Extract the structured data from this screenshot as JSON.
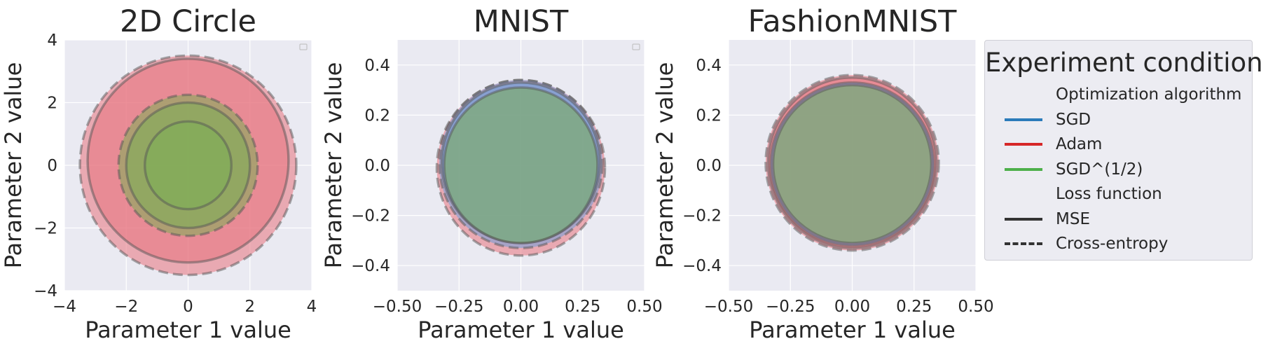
{
  "chart_data": [
    {
      "type": "area",
      "title": "2D Circle",
      "xlabel": "Parameter 1 value",
      "ylabel": "Parameter 2 value",
      "xlim": [
        -4,
        4
      ],
      "ylim": [
        -4,
        4
      ],
      "xticks": [
        "−4",
        "−2",
        "0",
        "2",
        "4"
      ],
      "yticks": [
        "4",
        "2",
        "0",
        "−2",
        "−4"
      ],
      "grid": true,
      "empty_legend_box": "top-right",
      "circles": [
        {
          "optimizer": "Adam",
          "loss": "Cross-entropy",
          "x_range": [
            -3.5,
            3.5
          ],
          "y_range": [
            -3.5,
            3.5
          ]
        },
        {
          "optimizer": "Adam",
          "loss": "MSE",
          "x_range": [
            -3.25,
            3.25
          ],
          "y_range": [
            -3.1,
            3.4
          ]
        },
        {
          "optimizer": "SGD^(1/2)",
          "loss": "Cross-entropy",
          "x_range": [
            -2.25,
            2.25
          ],
          "y_range": [
            -2.25,
            2.25
          ]
        },
        {
          "optimizer": "SGD^(1/2)",
          "loss": "MSE",
          "x_range": [
            -2.0,
            2.0
          ],
          "y_range": [
            -2.0,
            2.0
          ]
        },
        {
          "optimizer": "SGD^(1/2)",
          "loss": "MSE",
          "x_range": [
            -1.4,
            1.4
          ],
          "y_range": [
            -1.4,
            1.4
          ]
        }
      ]
    },
    {
      "type": "area",
      "title": "MNIST",
      "xlabel": "Parameter 1 value",
      "ylabel": "Parameter 2 value",
      "xlim": [
        -0.5,
        0.5
      ],
      "ylim": [
        -0.5,
        0.5
      ],
      "xticks": [
        "−0.50",
        "−0.25",
        "0.00",
        "0.25",
        "0.50"
      ],
      "yticks": [
        "0.4",
        "0.2",
        "0.0",
        "−0.2",
        "−0.4"
      ],
      "grid": true,
      "empty_legend_box": "top-right",
      "circles": [
        {
          "optimizer": "Adam",
          "loss": "Cross-entropy",
          "x_range": [
            -0.34,
            0.34
          ],
          "y_range": [
            -0.36,
            0.34
          ]
        },
        {
          "optimizer": "SGD",
          "loss": "Cross-entropy",
          "x_range": [
            -0.33,
            0.33
          ],
          "y_range": [
            -0.33,
            0.34
          ]
        },
        {
          "optimizer": "SGD",
          "loss": "MSE",
          "x_range": [
            -0.32,
            0.32
          ],
          "y_range": [
            -0.31,
            0.33
          ]
        },
        {
          "optimizer": "SGD^(1/2)",
          "loss": "MSE",
          "x_range": [
            -0.31,
            0.31
          ],
          "y_range": [
            -0.31,
            0.31
          ]
        }
      ]
    },
    {
      "type": "area",
      "title": "FashionMNIST",
      "xlabel": "Parameter 1 value",
      "ylabel": "Parameter 2 value",
      "xlim": [
        -0.5,
        0.5
      ],
      "ylim": [
        -0.5,
        0.5
      ],
      "xticks": [
        "−0.50",
        "−0.25",
        "0.00",
        "0.25",
        "0.50"
      ],
      "yticks": [
        "0.4",
        "0.2",
        "0.0",
        "−0.2",
        "−0.4"
      ],
      "grid": true,
      "circles": [
        {
          "optimizer": "Adam",
          "loss": "Cross-entropy",
          "x_range": [
            -0.35,
            0.35
          ],
          "y_range": [
            -0.34,
            0.36
          ]
        },
        {
          "optimizer": "Adam",
          "loss": "MSE",
          "x_range": [
            -0.34,
            0.34
          ],
          "y_range": [
            -0.33,
            0.35
          ]
        },
        {
          "optimizer": "SGD",
          "loss": "MSE",
          "x_range": [
            -0.33,
            0.33
          ],
          "y_range": [
            -0.32,
            0.33
          ]
        },
        {
          "optimizer": "SGD^(1/2)",
          "loss": "MSE",
          "x_range": [
            -0.32,
            0.32
          ],
          "y_range": [
            -0.31,
            0.32
          ]
        }
      ]
    }
  ],
  "legend": {
    "title": "Experiment condition",
    "placement": "right",
    "entries": [
      {
        "label": "Optimization algorithm",
        "kind": "header"
      },
      {
        "label": "SGD",
        "kind": "line",
        "color": "#2b7bba",
        "style": "solid"
      },
      {
        "label": "Adam",
        "kind": "line",
        "color": "#d62728",
        "style": "solid"
      },
      {
        "label": "SGD^(1/2)",
        "kind": "line",
        "color": "#4daf4a",
        "style": "solid"
      },
      {
        "label": "Loss function",
        "kind": "header"
      },
      {
        "label": "MSE",
        "kind": "line",
        "color": "#333333",
        "style": "solid"
      },
      {
        "label": "Cross-entropy",
        "kind": "line",
        "color": "#333333",
        "style": "dashed"
      }
    ]
  },
  "colors": {
    "SGD": "#6f9fd8",
    "Adam": "#e8737d",
    "SGD^(1/2)": "#7cae56",
    "plot_background": "#eaeaf2",
    "grid": "#ffffff",
    "outline": "#555555"
  }
}
